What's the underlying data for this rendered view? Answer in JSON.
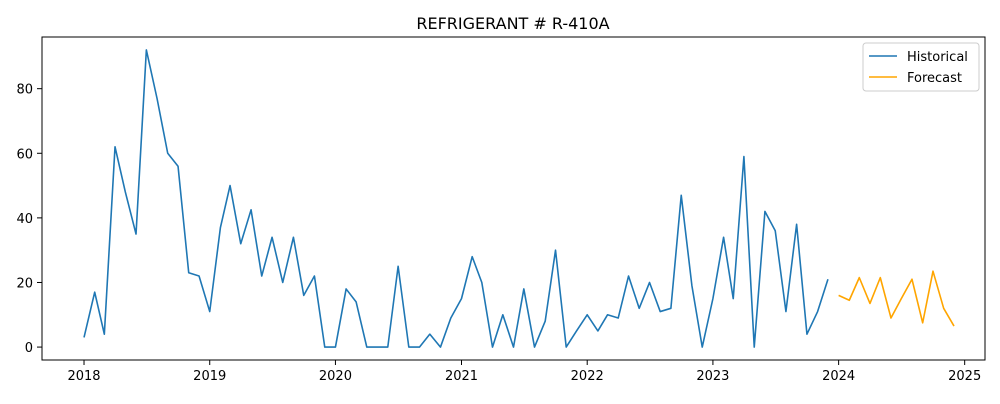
{
  "chart_data": {
    "type": "line",
    "title": "REFRIGERANT # R-410A",
    "xlabel": "",
    "ylabel": "",
    "xlim": [
      "2017-09-01",
      "2025-03-01"
    ],
    "ylim": [
      -4,
      96
    ],
    "xticks": [
      "2018",
      "2019",
      "2020",
      "2021",
      "2022",
      "2023",
      "2024",
      "2025"
    ],
    "yticks": [
      0,
      20,
      40,
      60,
      80
    ],
    "grid": false,
    "legend_position": "top-right",
    "series": [
      {
        "name": "Historical",
        "color": "#1f77b4",
        "x": [
          "2018-01",
          "2018-02",
          "2018-03",
          "2018-04",
          "2018-05",
          "2018-06",
          "2018-07",
          "2018-08",
          "2018-09",
          "2018-10",
          "2018-11",
          "2018-12",
          "2019-01",
          "2019-02",
          "2019-03",
          "2019-04",
          "2019-05",
          "2019-06",
          "2019-07",
          "2019-08",
          "2019-09",
          "2019-10",
          "2019-11",
          "2019-12",
          "2020-01",
          "2020-02",
          "2020-03",
          "2020-04",
          "2020-05",
          "2020-06",
          "2020-07",
          "2020-08",
          "2020-09",
          "2020-10",
          "2020-11",
          "2020-12",
          "2021-01",
          "2021-02",
          "2021-03",
          "2021-04",
          "2021-05",
          "2021-06",
          "2021-07",
          "2021-08",
          "2021-09",
          "2021-10",
          "2021-11",
          "2021-12",
          "2022-01",
          "2022-02",
          "2022-03",
          "2022-04",
          "2022-05",
          "2022-06",
          "2022-07",
          "2022-08",
          "2022-09",
          "2022-10",
          "2022-11",
          "2022-12",
          "2023-01",
          "2023-02",
          "2023-03",
          "2023-04",
          "2023-05",
          "2023-06",
          "2023-07",
          "2023-08",
          "2023-09",
          "2023-10",
          "2023-11",
          "2023-12"
        ],
        "values": [
          3,
          17,
          4,
          62,
          48,
          35,
          92,
          77,
          60,
          56,
          23,
          22,
          11,
          37,
          50,
          32,
          42.5,
          22,
          34,
          20,
          34,
          16,
          22,
          0,
          0,
          18,
          14,
          0,
          0,
          0,
          25,
          0,
          0,
          4,
          0,
          9,
          15,
          28,
          20,
          0,
          10,
          0,
          18,
          0,
          8,
          30,
          0,
          5,
          10,
          5,
          10,
          9,
          22,
          12,
          20,
          11,
          12,
          47,
          19,
          0,
          15,
          34,
          15,
          59,
          0,
          42,
          36,
          11,
          38,
          4,
          11,
          21
        ]
      },
      {
        "name": "Forecast",
        "color": "#ffa500",
        "x": [
          "2024-01",
          "2024-02",
          "2024-03",
          "2024-04",
          "2024-05",
          "2024-06",
          "2024-07",
          "2024-08",
          "2024-09",
          "2024-10",
          "2024-11",
          "2024-12"
        ],
        "values": [
          16,
          14.5,
          21.5,
          13.5,
          21.5,
          9,
          15,
          21,
          7.5,
          23.5,
          12,
          6.5
        ]
      }
    ]
  }
}
